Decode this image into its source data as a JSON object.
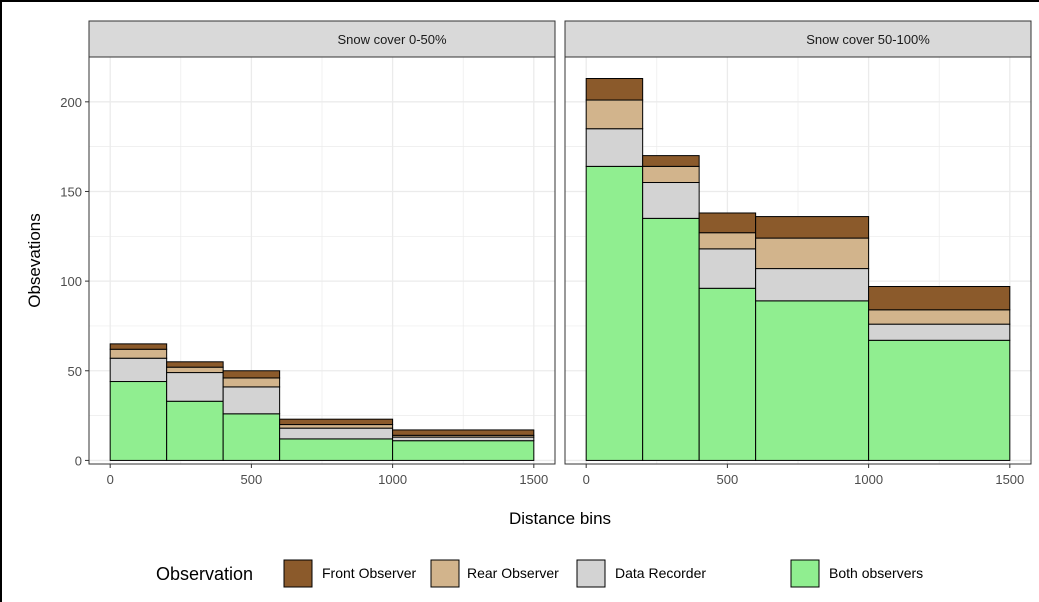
{
  "chart_data": {
    "type": "bar",
    "stacked": true,
    "facets": [
      {
        "title": "Snow cover 0-50%"
      },
      {
        "title": "Snow cover 50-100%"
      }
    ],
    "xlabel": "Distance bins",
    "ylabel": "Obsevations",
    "x_ticks": [
      0,
      500,
      1000,
      1500
    ],
    "x_tick_labels": [
      "0",
      "500",
      "1000",
      "1500"
    ],
    "y_ticks": [
      0,
      50,
      100,
      150,
      200
    ],
    "y_tick_labels": [
      "0",
      "50",
      "100",
      "150",
      "200"
    ],
    "xlim": [
      -75,
      1575
    ],
    "ylim": [
      -2,
      225
    ],
    "bins": [
      [
        0,
        200
      ],
      [
        200,
        400
      ],
      [
        400,
        600
      ],
      [
        600,
        1000
      ],
      [
        1000,
        1500
      ]
    ],
    "legend_title": "Observation",
    "legend_position": "bottom",
    "series": [
      {
        "name": "Both observers",
        "color": "#90ee90",
        "values_by_facet": [
          [
            44,
            33,
            26,
            12,
            11
          ],
          [
            164,
            135,
            96,
            89,
            67
          ]
        ]
      },
      {
        "name": "Data Recorder",
        "color": "#d3d3d3",
        "values_by_facet": [
          [
            13,
            16,
            15,
            6,
            2
          ],
          [
            21,
            20,
            22,
            18,
            9
          ]
        ]
      },
      {
        "name": "Rear Observer",
        "color": "#d2b48c",
        "values_by_facet": [
          [
            5,
            3,
            5,
            2,
            1
          ],
          [
            16,
            9,
            9,
            17,
            8
          ]
        ]
      },
      {
        "name": "Front Observer",
        "color": "#8b5a2b",
        "values_by_facet": [
          [
            3,
            3,
            4,
            3,
            3
          ],
          [
            12,
            6,
            11,
            12,
            13
          ]
        ]
      }
    ],
    "legend_order": [
      "Front Observer",
      "Rear Observer",
      "Data Recorder",
      "Both observers"
    ],
    "grid": true,
    "panel_background": "#ffffff",
    "strip_background": "#d9d9d9",
    "grid_color": "#ebebeb",
    "bar_outline": "#000000"
  }
}
